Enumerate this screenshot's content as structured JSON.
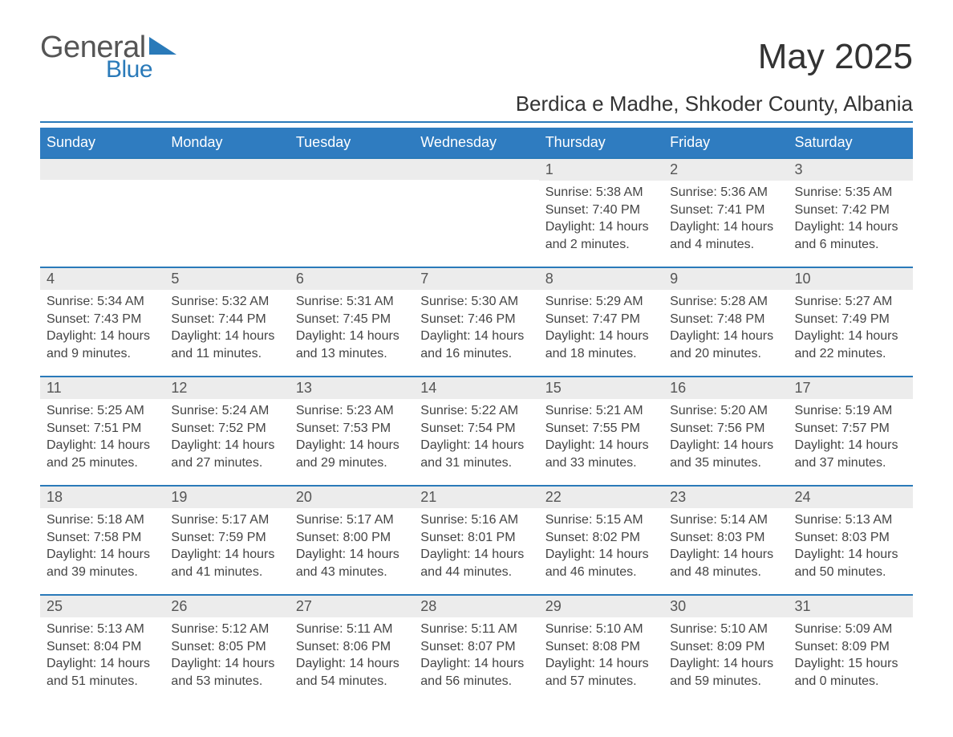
{
  "brand": {
    "word1": "General",
    "word2": "Blue",
    "accent_color": "#2a7ab9"
  },
  "title": "May 2025",
  "location": "Berdica e Madhe, Shkoder County, Albania",
  "colors": {
    "header_bg": "#2f7cc0",
    "header_text": "#ffffff",
    "daynum_bg": "#ececec",
    "daynum_border": "#2a7ab9",
    "body_text": "#444444",
    "page_bg": "#ffffff"
  },
  "weekdays": [
    "Sunday",
    "Monday",
    "Tuesday",
    "Wednesday",
    "Thursday",
    "Friday",
    "Saturday"
  ],
  "cells": [
    [
      {
        "n": "",
        "sr": "",
        "ss": "",
        "dl": ""
      },
      {
        "n": "",
        "sr": "",
        "ss": "",
        "dl": ""
      },
      {
        "n": "",
        "sr": "",
        "ss": "",
        "dl": ""
      },
      {
        "n": "",
        "sr": "",
        "ss": "",
        "dl": ""
      },
      {
        "n": "1",
        "sr": "Sunrise: 5:38 AM",
        "ss": "Sunset: 7:40 PM",
        "dl": "Daylight: 14 hours and 2 minutes."
      },
      {
        "n": "2",
        "sr": "Sunrise: 5:36 AM",
        "ss": "Sunset: 7:41 PM",
        "dl": "Daylight: 14 hours and 4 minutes."
      },
      {
        "n": "3",
        "sr": "Sunrise: 5:35 AM",
        "ss": "Sunset: 7:42 PM",
        "dl": "Daylight: 14 hours and 6 minutes."
      }
    ],
    [
      {
        "n": "4",
        "sr": "Sunrise: 5:34 AM",
        "ss": "Sunset: 7:43 PM",
        "dl": "Daylight: 14 hours and 9 minutes."
      },
      {
        "n": "5",
        "sr": "Sunrise: 5:32 AM",
        "ss": "Sunset: 7:44 PM",
        "dl": "Daylight: 14 hours and 11 minutes."
      },
      {
        "n": "6",
        "sr": "Sunrise: 5:31 AM",
        "ss": "Sunset: 7:45 PM",
        "dl": "Daylight: 14 hours and 13 minutes."
      },
      {
        "n": "7",
        "sr": "Sunrise: 5:30 AM",
        "ss": "Sunset: 7:46 PM",
        "dl": "Daylight: 14 hours and 16 minutes."
      },
      {
        "n": "8",
        "sr": "Sunrise: 5:29 AM",
        "ss": "Sunset: 7:47 PM",
        "dl": "Daylight: 14 hours and 18 minutes."
      },
      {
        "n": "9",
        "sr": "Sunrise: 5:28 AM",
        "ss": "Sunset: 7:48 PM",
        "dl": "Daylight: 14 hours and 20 minutes."
      },
      {
        "n": "10",
        "sr": "Sunrise: 5:27 AM",
        "ss": "Sunset: 7:49 PM",
        "dl": "Daylight: 14 hours and 22 minutes."
      }
    ],
    [
      {
        "n": "11",
        "sr": "Sunrise: 5:25 AM",
        "ss": "Sunset: 7:51 PM",
        "dl": "Daylight: 14 hours and 25 minutes."
      },
      {
        "n": "12",
        "sr": "Sunrise: 5:24 AM",
        "ss": "Sunset: 7:52 PM",
        "dl": "Daylight: 14 hours and 27 minutes."
      },
      {
        "n": "13",
        "sr": "Sunrise: 5:23 AM",
        "ss": "Sunset: 7:53 PM",
        "dl": "Daylight: 14 hours and 29 minutes."
      },
      {
        "n": "14",
        "sr": "Sunrise: 5:22 AM",
        "ss": "Sunset: 7:54 PM",
        "dl": "Daylight: 14 hours and 31 minutes."
      },
      {
        "n": "15",
        "sr": "Sunrise: 5:21 AM",
        "ss": "Sunset: 7:55 PM",
        "dl": "Daylight: 14 hours and 33 minutes."
      },
      {
        "n": "16",
        "sr": "Sunrise: 5:20 AM",
        "ss": "Sunset: 7:56 PM",
        "dl": "Daylight: 14 hours and 35 minutes."
      },
      {
        "n": "17",
        "sr": "Sunrise: 5:19 AM",
        "ss": "Sunset: 7:57 PM",
        "dl": "Daylight: 14 hours and 37 minutes."
      }
    ],
    [
      {
        "n": "18",
        "sr": "Sunrise: 5:18 AM",
        "ss": "Sunset: 7:58 PM",
        "dl": "Daylight: 14 hours and 39 minutes."
      },
      {
        "n": "19",
        "sr": "Sunrise: 5:17 AM",
        "ss": "Sunset: 7:59 PM",
        "dl": "Daylight: 14 hours and 41 minutes."
      },
      {
        "n": "20",
        "sr": "Sunrise: 5:17 AM",
        "ss": "Sunset: 8:00 PM",
        "dl": "Daylight: 14 hours and 43 minutes."
      },
      {
        "n": "21",
        "sr": "Sunrise: 5:16 AM",
        "ss": "Sunset: 8:01 PM",
        "dl": "Daylight: 14 hours and 44 minutes."
      },
      {
        "n": "22",
        "sr": "Sunrise: 5:15 AM",
        "ss": "Sunset: 8:02 PM",
        "dl": "Daylight: 14 hours and 46 minutes."
      },
      {
        "n": "23",
        "sr": "Sunrise: 5:14 AM",
        "ss": "Sunset: 8:03 PM",
        "dl": "Daylight: 14 hours and 48 minutes."
      },
      {
        "n": "24",
        "sr": "Sunrise: 5:13 AM",
        "ss": "Sunset: 8:03 PM",
        "dl": "Daylight: 14 hours and 50 minutes."
      }
    ],
    [
      {
        "n": "25",
        "sr": "Sunrise: 5:13 AM",
        "ss": "Sunset: 8:04 PM",
        "dl": "Daylight: 14 hours and 51 minutes."
      },
      {
        "n": "26",
        "sr": "Sunrise: 5:12 AM",
        "ss": "Sunset: 8:05 PM",
        "dl": "Daylight: 14 hours and 53 minutes."
      },
      {
        "n": "27",
        "sr": "Sunrise: 5:11 AM",
        "ss": "Sunset: 8:06 PM",
        "dl": "Daylight: 14 hours and 54 minutes."
      },
      {
        "n": "28",
        "sr": "Sunrise: 5:11 AM",
        "ss": "Sunset: 8:07 PM",
        "dl": "Daylight: 14 hours and 56 minutes."
      },
      {
        "n": "29",
        "sr": "Sunrise: 5:10 AM",
        "ss": "Sunset: 8:08 PM",
        "dl": "Daylight: 14 hours and 57 minutes."
      },
      {
        "n": "30",
        "sr": "Sunrise: 5:10 AM",
        "ss": "Sunset: 8:09 PM",
        "dl": "Daylight: 14 hours and 59 minutes."
      },
      {
        "n": "31",
        "sr": "Sunrise: 5:09 AM",
        "ss": "Sunset: 8:09 PM",
        "dl": "Daylight: 15 hours and 0 minutes."
      }
    ]
  ]
}
